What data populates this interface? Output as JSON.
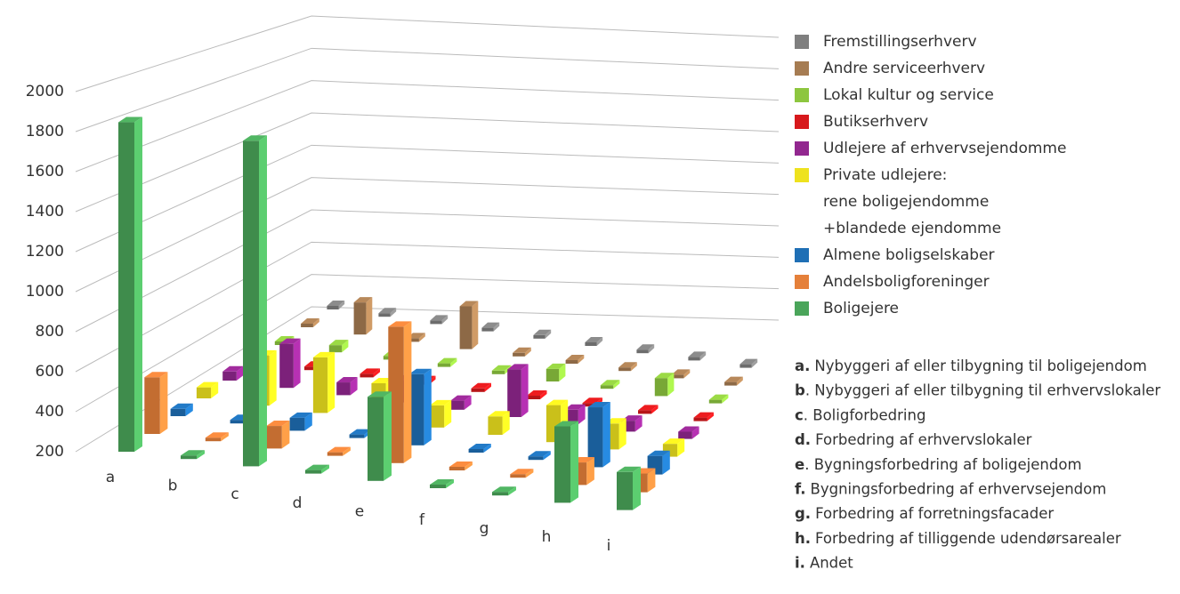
{
  "chart_data": {
    "type": "bar3d",
    "categories": [
      "a",
      "b",
      "c",
      "d",
      "e",
      "f",
      "g",
      "h",
      "i"
    ],
    "series": [
      {
        "name": "Boligejere",
        "color": "#4aa55a",
        "values": [
          1900,
          200,
          1880,
          200,
          620,
          200,
          200,
          580,
          380
        ]
      },
      {
        "name": "Andelsboligforeninger",
        "color": "#e5803a",
        "values": [
          480,
          200,
          300,
          200,
          900,
          200,
          200,
          300,
          280
        ]
      },
      {
        "name": "Almene boligselskaber",
        "color": "#1f6fb5",
        "values": [
          220,
          200,
          250,
          200,
          560,
          200,
          200,
          500,
          280
        ]
      },
      {
        "name": "Private udlejere:\nrene boligejendomme\n+blandede ejendomme",
        "color": "#eee21e",
        "values": [
          240,
          450,
          480,
          380,
          300,
          280,
          380,
          320,
          250
        ]
      },
      {
        "name": "Udlejere af erhvervsejendomme",
        "color": "#92278f",
        "values": [
          230,
          420,
          250,
          300,
          230,
          440,
          260,
          240,
          220
        ]
      },
      {
        "name": "Butikserhverv",
        "color": "#d7191c",
        "values": [
          200,
          200,
          200,
          200,
          200,
          200,
          200,
          200,
          200
        ]
      },
      {
        "name": "Lokal kultur og service",
        "color": "#8dc63f",
        "values": [
          200,
          220,
          200,
          200,
          200,
          250,
          200,
          280,
          200
        ]
      },
      {
        "name": "Andre serviceerhverv",
        "color": "#a67c52",
        "values": [
          200,
          360,
          200,
          420,
          200,
          200,
          200,
          200,
          200
        ]
      },
      {
        "name": "Fremstillingserhverv",
        "color": "#7f7f7f",
        "values": [
          200,
          200,
          200,
          200,
          200,
          200,
          200,
          200,
          200
        ]
      }
    ],
    "ylim": [
      200,
      2000
    ],
    "yticks": [
      200,
      400,
      600,
      800,
      1000,
      1200,
      1400,
      1600,
      1800,
      2000
    ],
    "grid": true,
    "legend": "right",
    "notes": [
      {
        "key": "a.",
        "text": "Nybyggeri af eller tilbygning til boligejendom"
      },
      {
        "key": "b",
        "text": ". Nybyggeri af eller tilbygning til erhvervslokaler"
      },
      {
        "key": "c",
        "text": ". Boligforbedring"
      },
      {
        "key": "d.",
        "text": "Forbedring af erhvervslokaler"
      },
      {
        "key": "e",
        "text": ". Bygningsforbedring af boligejendom"
      },
      {
        "key": "f.",
        "text": "Bygningsforbedring af erhvervsejendom"
      },
      {
        "key": "g.",
        "text": "Forbedring af forretningsfacader"
      },
      {
        "key": "h.",
        "text": "Forbedring af tilliggende udendørsarealer"
      },
      {
        "key": "i.",
        "text": "Andet"
      }
    ]
  }
}
